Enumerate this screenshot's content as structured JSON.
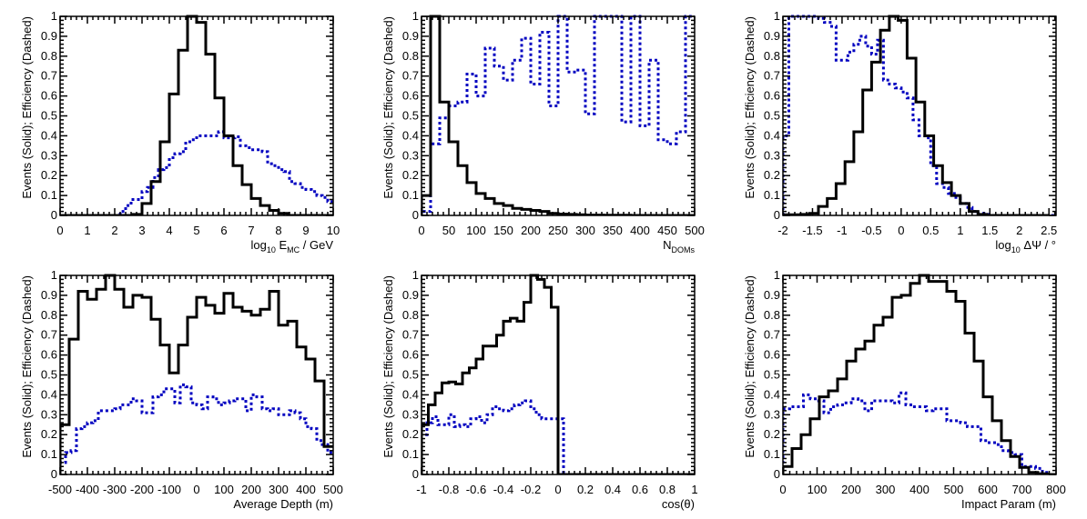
{
  "chart_data": [
    {
      "type": "histogram",
      "ylabel": "Events (Solid); Efficiency (Dashed)",
      "xlabel": {
        "main": "log",
        "sub1": "10",
        "mid": " E",
        "sub2": "MC",
        "tail": " / GeV"
      },
      "xlim": [
        0,
        10
      ],
      "ylim": [
        0,
        1
      ],
      "xticks": [
        0,
        1,
        2,
        3,
        4,
        5,
        6,
        7,
        8,
        9,
        10
      ],
      "xtick_labels": [
        "0",
        "1",
        "2",
        "3",
        "4",
        "5",
        "6",
        "7",
        "8",
        "9",
        "10"
      ],
      "solid": {
        "start": 0,
        "width": 0.3333,
        "values": [
          0,
          0,
          0,
          0,
          0,
          0,
          0,
          0,
          0.005,
          0.06,
          0.17,
          0.37,
          0.61,
          0.83,
          1.0,
          0.97,
          0.81,
          0.59,
          0.4,
          0.25,
          0.155,
          0.085,
          0.05,
          0.025,
          0.01,
          0,
          0,
          0,
          0,
          0
        ]
      },
      "dashed": {
        "start": 0,
        "width": 0.2,
        "values": [
          0,
          0,
          0,
          0,
          0,
          0,
          0,
          0,
          0,
          0,
          0,
          0.02,
          0.05,
          0.08,
          0.08,
          0.12,
          0.14,
          0.19,
          0.23,
          0.24,
          0.29,
          0.31,
          0.32,
          0.37,
          0.38,
          0.4,
          0.4,
          0.4,
          0.4,
          0.42,
          0.39,
          0.39,
          0.395,
          0.35,
          0.34,
          0.33,
          0.33,
          0.32,
          0.26,
          0.25,
          0.23,
          0.22,
          0.17,
          0.16,
          0.14,
          0.13,
          0.12,
          0.1,
          0.09,
          0.07
        ]
      }
    },
    {
      "type": "histogram",
      "ylabel": "Events (Solid); Efficiency (Dashed)",
      "xlabel": {
        "main": "N",
        "sub1": "DOMs",
        "mid": "",
        "sub2": "",
        "tail": ""
      },
      "xlim": [
        0,
        500
      ],
      "ylim": [
        0,
        1
      ],
      "xticks": [
        0,
        50,
        100,
        150,
        200,
        250,
        300,
        350,
        400,
        450,
        500
      ],
      "xtick_labels": [
        "0",
        "50",
        "100",
        "150",
        "200",
        "250",
        "300",
        "350",
        "400",
        "450",
        "500"
      ],
      "solid": {
        "start": 0,
        "width": 16.667,
        "values": [
          0.1,
          1.0,
          0.57,
          0.37,
          0.25,
          0.165,
          0.11,
          0.085,
          0.06,
          0.05,
          0.035,
          0.03,
          0.025,
          0.02,
          0.01,
          0.007,
          0.005,
          0.003,
          0.002,
          0.002,
          0.001,
          0.001,
          0.001,
          0,
          0,
          0,
          0,
          0,
          0,
          0
        ]
      },
      "dashed": {
        "start": 0,
        "width": 16.667,
        "values": [
          0.02,
          0.36,
          0.49,
          0.55,
          0.57,
          0.71,
          0.6,
          0.84,
          0.75,
          0.68,
          0.78,
          0.89,
          0.66,
          0.92,
          0.55,
          1.0,
          0.72,
          0.73,
          0.51,
          1.0,
          1.0,
          1.0,
          0.47,
          1.0,
          0.45,
          0.78,
          0.38,
          0.36,
          0.42,
          1.0
        ]
      }
    },
    {
      "type": "histogram",
      "ylabel": "Events (Solid); Efficiency (Dashed)",
      "xlabel": {
        "main": "log",
        "sub1": "10",
        "mid": " ΔΨ / °",
        "sub2": "",
        "tail": ""
      },
      "xlim": [
        -2,
        2.62
      ],
      "ylim": [
        0,
        1
      ],
      "xticks": [
        -2,
        -1.5,
        -1,
        -0.5,
        0,
        0.5,
        1,
        1.5,
        2,
        2.5
      ],
      "xtick_labels": [
        "-2",
        "-1.5",
        "-1",
        "-0.5",
        "0",
        "0.5",
        "1",
        "1.5",
        "2",
        "2.5"
      ],
      "solid": {
        "start": -2,
        "width": 0.15,
        "values": [
          0.003,
          0.003,
          0.005,
          0.01,
          0.045,
          0.085,
          0.16,
          0.27,
          0.42,
          0.63,
          0.77,
          0.93,
          1.0,
          0.98,
          0.79,
          0.57,
          0.4,
          0.25,
          0.165,
          0.1,
          0.06,
          0.02,
          0.005,
          0,
          0,
          0,
          0,
          0,
          0,
          0
        ]
      },
      "dashed": {
        "start": -2,
        "width": 0.1,
        "values": [
          0.4,
          1.0,
          1.0,
          1.0,
          1.0,
          1.0,
          0.99,
          0.97,
          0.95,
          0.78,
          0.78,
          0.82,
          0.86,
          0.9,
          0.85,
          0.81,
          0.88,
          0.68,
          0.66,
          0.64,
          0.62,
          0.59,
          0.48,
          0.4,
          0.39,
          0.25,
          0.16,
          0.14,
          0.11,
          0.09,
          0.06,
          0.04,
          0.02,
          0.01,
          0.005,
          0,
          0,
          0,
          0,
          0,
          0,
          0,
          0,
          0,
          0,
          0
        ]
      }
    },
    {
      "type": "histogram",
      "ylabel": "Events (Solid); Efficiency (Dashed)",
      "xlabel": {
        "main": "Average Depth (m)",
        "sub1": "",
        "mid": "",
        "sub2": "",
        "tail": ""
      },
      "xlim": [
        -500,
        500
      ],
      "ylim": [
        0,
        1
      ],
      "xticks": [
        -500,
        -400,
        -300,
        -200,
        -100,
        0,
        100,
        200,
        300,
        400,
        500
      ],
      "xtick_labels": [
        "-500",
        "-400",
        "-300",
        "-200",
        "-100",
        "0",
        "100",
        "200",
        "300",
        "400",
        "500"
      ],
      "solid": {
        "start": -500,
        "width": 33.333,
        "values": [
          0.25,
          0.68,
          0.92,
          0.88,
          0.93,
          1.0,
          0.93,
          0.84,
          0.9,
          0.89,
          0.78,
          0.65,
          0.51,
          0.65,
          0.79,
          0.89,
          0.85,
          0.81,
          0.91,
          0.84,
          0.82,
          0.8,
          0.83,
          0.92,
          0.75,
          0.77,
          0.64,
          0.58,
          0.47,
          0.14
        ]
      },
      "dashed": {
        "start": -500,
        "width": 20,
        "values": [
          0.06,
          0.11,
          0.12,
          0.23,
          0.24,
          0.26,
          0.27,
          0.32,
          0.32,
          0.32,
          0.33,
          0.35,
          0.35,
          0.38,
          0.37,
          0.31,
          0.31,
          0.39,
          0.4,
          0.43,
          0.43,
          0.36,
          0.45,
          0.44,
          0.36,
          0.35,
          0.33,
          0.39,
          0.38,
          0.35,
          0.36,
          0.37,
          0.38,
          0.38,
          0.32,
          0.4,
          0.39,
          0.33,
          0.32,
          0.33,
          0.3,
          0.3,
          0.32,
          0.31,
          0.28,
          0.24,
          0.23,
          0.17,
          0.15,
          0.11
        ]
      }
    },
    {
      "type": "histogram",
      "ylabel": "Events (Solid); Efficiency (Dashed)",
      "xlabel": {
        "main": "cos(θ)",
        "sub1": "",
        "mid": "",
        "sub2": "",
        "tail": ""
      },
      "xlim": [
        -1,
        1
      ],
      "ylim": [
        0,
        1
      ],
      "xticks": [
        -1,
        -0.8,
        -0.6,
        -0.4,
        -0.2,
        0,
        0.2,
        0.4,
        0.6,
        0.8,
        1
      ],
      "xtick_labels": [
        "-1",
        "-0.8",
        "-0.6",
        "-0.4",
        "-0.2",
        "0",
        "0.2",
        "0.4",
        "0.6",
        "0.8",
        "1"
      ],
      "solid": {
        "start": -1,
        "width": 0.05,
        "values": [
          0.25,
          0.35,
          0.41,
          0.46,
          0.465,
          0.455,
          0.51,
          0.535,
          0.58,
          0.645,
          0.645,
          0.7,
          0.77,
          0.785,
          0.77,
          0.865,
          1.0,
          0.98,
          0.94,
          0.84,
          0,
          0,
          0,
          0,
          0,
          0,
          0,
          0,
          0,
          0,
          0,
          0,
          0,
          0,
          0,
          0,
          0,
          0,
          0,
          0
        ]
      },
      "dashed": {
        "start": -1,
        "width": 0.04,
        "values": [
          0.2,
          0.26,
          0.29,
          0.25,
          0.25,
          0.3,
          0.24,
          0.25,
          0.24,
          0.28,
          0.29,
          0.26,
          0.3,
          0.34,
          0.33,
          0.32,
          0.33,
          0.35,
          0.36,
          0.37,
          0.33,
          0.3,
          0.28,
          0.28,
          0.28,
          0.28,
          0,
          0,
          0,
          0,
          0,
          0,
          0,
          0,
          0,
          0,
          0,
          0,
          0,
          0,
          0,
          0,
          0,
          0,
          0,
          0,
          0,
          0,
          0,
          0
        ]
      }
    },
    {
      "type": "histogram",
      "ylabel": "Events (Solid); Efficiency (Dashed)",
      "xlabel": {
        "main": "Impact Param (m)",
        "sub1": "",
        "mid": "",
        "sub2": "",
        "tail": ""
      },
      "xlim": [
        0,
        800
      ],
      "ylim": [
        0,
        1
      ],
      "xticks": [
        0,
        100,
        200,
        300,
        400,
        500,
        600,
        700,
        800
      ],
      "xtick_labels": [
        "0",
        "100",
        "200",
        "300",
        "400",
        "500",
        "600",
        "700",
        "800"
      ],
      "solid": {
        "start": 0,
        "width": 26.667,
        "values": [
          0.04,
          0.13,
          0.2,
          0.28,
          0.39,
          0.42,
          0.48,
          0.57,
          0.63,
          0.67,
          0.75,
          0.79,
          0.89,
          0.9,
          0.96,
          1.0,
          0.97,
          0.97,
          0.92,
          0.87,
          0.71,
          0.57,
          0.39,
          0.27,
          0.17,
          0.09,
          0.035,
          0.01,
          0.003,
          0
        ]
      },
      "dashed": {
        "start": 0,
        "width": 20,
        "values": [
          0.33,
          0.34,
          0.34,
          0.4,
          0.38,
          0.37,
          0.31,
          0.34,
          0.35,
          0.36,
          0.38,
          0.37,
          0.32,
          0.37,
          0.37,
          0.37,
          0.36,
          0.41,
          0.35,
          0.34,
          0.34,
          0.32,
          0.33,
          0.33,
          0.27,
          0.27,
          0.26,
          0.24,
          0.24,
          0.17,
          0.16,
          0.15,
          0.12,
          0.11,
          0.1,
          0.04,
          0.04,
          0.03,
          0.01,
          0
        ]
      }
    }
  ],
  "yticks": [
    0,
    0.1,
    0.2,
    0.3,
    0.4,
    0.5,
    0.6,
    0.7,
    0.8,
    0.9,
    1
  ],
  "ytick_labels": [
    "0",
    "0.1",
    "0.2",
    "0.3",
    "0.4",
    "0.5",
    "0.6",
    "0.7",
    "0.8",
    "0.9",
    "1"
  ],
  "colors": {
    "solid": "#000000",
    "dashed": "#0000c0",
    "axis": "#000000"
  },
  "grid": false
}
